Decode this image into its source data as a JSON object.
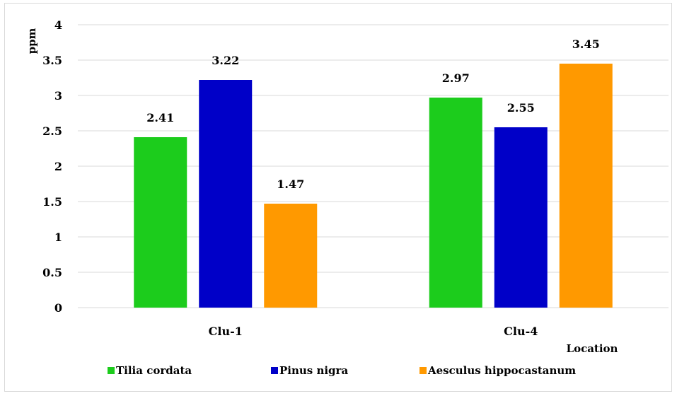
{
  "chart_data": {
    "type": "bar",
    "categories": [
      "Clu-1",
      "Clu-4"
    ],
    "series": [
      {
        "name": "Tilia cordata",
        "values": [
          2.41,
          2.97
        ],
        "color": "#1ccc1c"
      },
      {
        "name": "Pinus nigra",
        "values": [
          3.22,
          2.55
        ],
        "color": "#0000c8"
      },
      {
        "name": "Aesculus hippocastanum",
        "values": [
          1.47,
          3.45
        ],
        "color": "#ff9900"
      }
    ],
    "data_labels": [
      [
        "2.41",
        "2.97"
      ],
      [
        "3.22",
        "2.55"
      ],
      [
        "1.47",
        "3.45"
      ]
    ],
    "yticks": [
      "0",
      "0.5",
      "1",
      "1.5",
      "2",
      "2.5",
      "3",
      "3.5",
      "4"
    ],
    "ylim": [
      0,
      4
    ],
    "ylabel": "ppm",
    "xlabel": "Location",
    "grid": true,
    "legend_position": "bottom"
  }
}
